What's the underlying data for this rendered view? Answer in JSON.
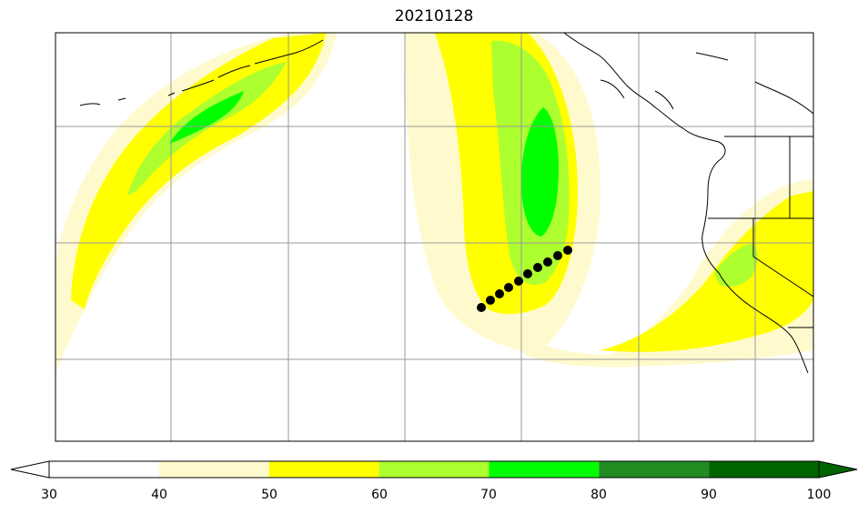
{
  "title": "20210128",
  "colorbar": {
    "ticks": [
      "30",
      "40",
      "50",
      "60",
      "70",
      "80",
      "90",
      "100"
    ],
    "levels": [
      {
        "min": 30,
        "max": 40,
        "color": "#ffffff"
      },
      {
        "min": 40,
        "max": 50,
        "color": "#fffacd"
      },
      {
        "min": 50,
        "max": 60,
        "color": "#ffff00"
      },
      {
        "min": 60,
        "max": 70,
        "color": "#adff2f"
      },
      {
        "min": 70,
        "max": 80,
        "color": "#00ff00"
      },
      {
        "min": 80,
        "max": 90,
        "color": "#228b22"
      },
      {
        "min": 90,
        "max": 100,
        "color": "#006400"
      }
    ],
    "extend": "both"
  },
  "track": {
    "point_count": 10,
    "color": "#000000"
  },
  "gridlines": "on",
  "coastline_color": "#000000"
}
